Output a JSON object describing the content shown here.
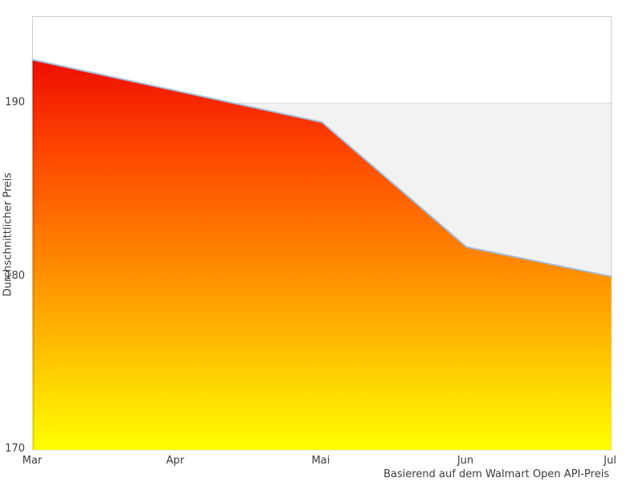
{
  "chart_data": {
    "type": "area",
    "categories": [
      "Mar",
      "Apr",
      "Mai",
      "Jun",
      "Jul"
    ],
    "values": [
      192.5,
      190.7,
      188.9,
      181.7,
      180.0
    ],
    "title": "",
    "xlabel": "",
    "ylabel": "Durchschnittlicher Preis",
    "caption": "Basierend auf dem Walmart Open API-Preis",
    "y_ticks": [
      170,
      180,
      190
    ],
    "y_tick_labels": [
      "170",
      "180",
      "190"
    ],
    "ylim": [
      170,
      195
    ],
    "gridlines": [
      190
    ],
    "alternate_band": [
      180,
      190
    ],
    "legend": "none",
    "colors": {
      "gradient_top": "#ee0d00",
      "gradient_q1": "#ff4a00",
      "gradient_mid": "#ff8400",
      "gradient_q3": "#ffc100",
      "gradient_bottom": "#ffff00",
      "line": "#a3bcdb",
      "band": "#f2f2f2",
      "plot_border": "#cccccc",
      "gridline": "#d9d9d9",
      "text": "#3d3d3d",
      "background": "#ffffff"
    }
  }
}
